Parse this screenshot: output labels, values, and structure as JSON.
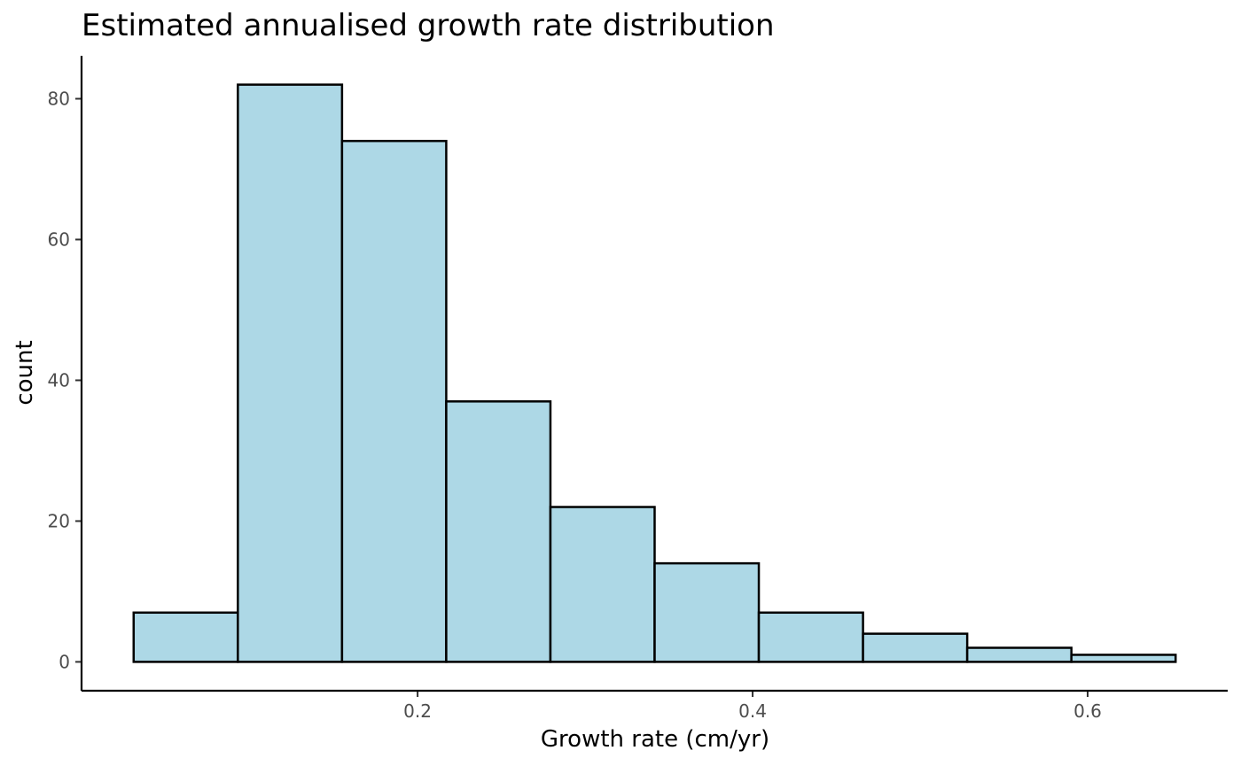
{
  "chart_data": {
    "type": "bar",
    "subtype": "histogram",
    "title": "Estimated annualised growth rate distribution",
    "xlabel": "Growth rate (cm/yr)",
    "ylabel": "count",
    "bin_edges": [
      0.0305,
      0.0927,
      0.1549,
      0.2171,
      0.2793,
      0.3415,
      0.4037,
      0.4659,
      0.5281,
      0.5903,
      0.6525
    ],
    "values": [
      7,
      82,
      74,
      37,
      22,
      14,
      7,
      4,
      2,
      1
    ],
    "xlim": [
      -0.0006,
      0.6836
    ],
    "ylim": [
      -4.1,
      86.1
    ],
    "x_ticks": [
      {
        "value": 0.2,
        "label": "0.2"
      },
      {
        "value": 0.4,
        "label": "0.4"
      },
      {
        "value": 0.6,
        "label": "0.6"
      }
    ],
    "y_ticks": [
      {
        "value": 0,
        "label": "0"
      },
      {
        "value": 20,
        "label": "20"
      },
      {
        "value": 40,
        "label": "40"
      },
      {
        "value": 60,
        "label": "60"
      },
      {
        "value": 80,
        "label": "80"
      }
    ],
    "grid": false,
    "legend": "none",
    "colors": {
      "bar_fill": "#add8e6",
      "bar_stroke": "#000000",
      "axis": "#000000",
      "tick_label": "#4d4d4d"
    }
  }
}
